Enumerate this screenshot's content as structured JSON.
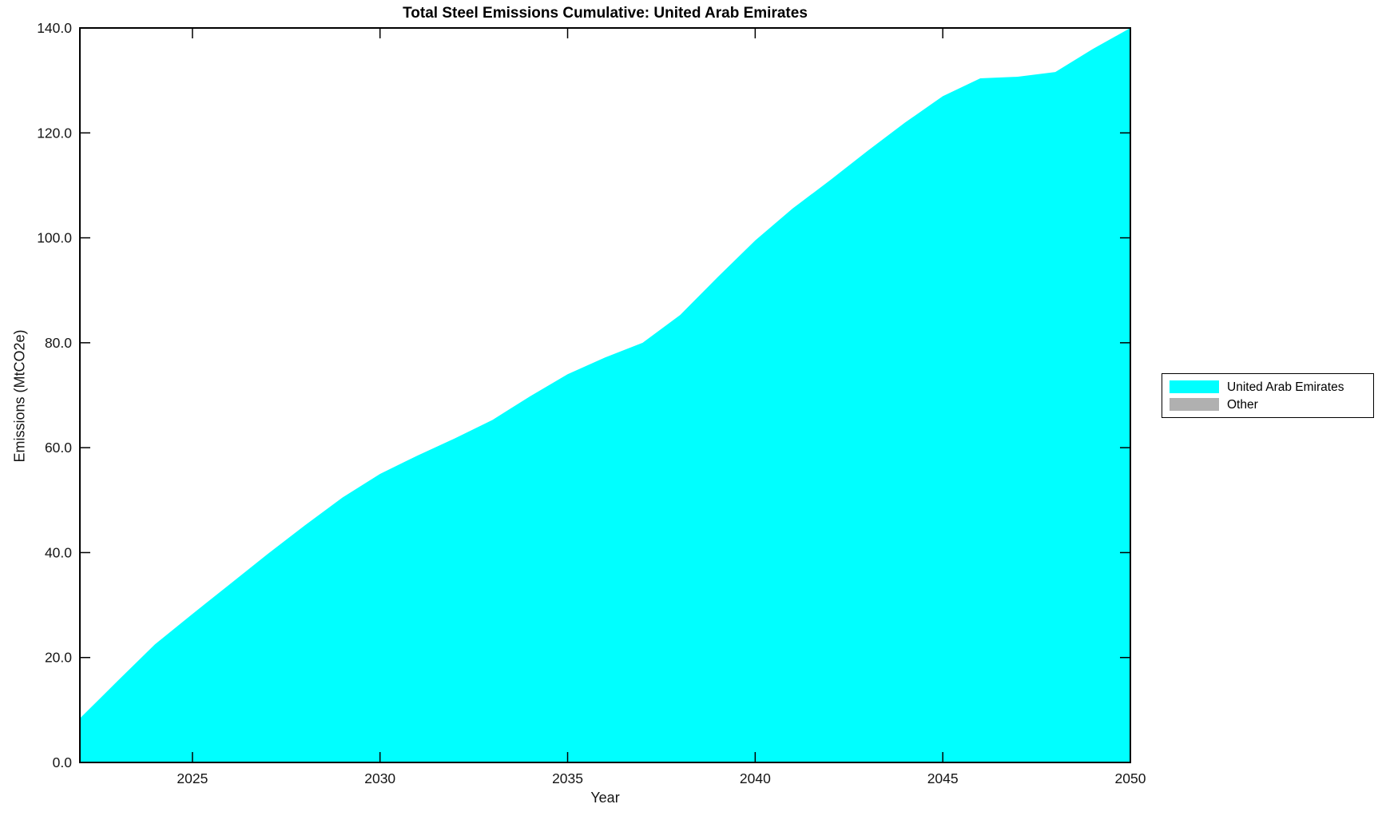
{
  "title": "Total Steel Emissions Cumulative: United Arab Emirates",
  "chart_data": {
    "type": "area",
    "stacked": true,
    "title": "Total Steel Emissions Cumulative: United Arab Emirates",
    "xlabel": "Year",
    "ylabel": "Emissions (MtCO2e)",
    "xlim": [
      2022,
      2050
    ],
    "ylim": [
      0,
      140
    ],
    "grid": false,
    "legend_position": "outside-right",
    "x": [
      2022,
      2023,
      2024,
      2025,
      2026,
      2027,
      2028,
      2029,
      2030,
      2031,
      2032,
      2033,
      2034,
      2035,
      2036,
      2037,
      2038,
      2039,
      2040,
      2041,
      2042,
      2043,
      2044,
      2045,
      2046,
      2047,
      2048,
      2049,
      2050
    ],
    "series": [
      {
        "name": "United Arab Emirates",
        "color": "#00ffff",
        "values": [
          8.4,
          15.5,
          22.5,
          28.3,
          34.0,
          39.7,
          45.2,
          50.5,
          55.0,
          58.5,
          61.8,
          65.3,
          69.8,
          74.0,
          77.2,
          80.0,
          85.3,
          92.5,
          99.5,
          105.6,
          111.0,
          116.6,
          122.0,
          127.0,
          130.4,
          130.7,
          131.6,
          136.0,
          140.0
        ]
      },
      {
        "name": "Other",
        "color": "#b0b0b0",
        "values": [
          0,
          0,
          0,
          0,
          0,
          0,
          0,
          0,
          0,
          0,
          0,
          0,
          0,
          0,
          0,
          0,
          0,
          0,
          0,
          0,
          0,
          0,
          0,
          0,
          0,
          0,
          0,
          0,
          0
        ]
      }
    ],
    "xticks": {
      "values": [
        2025,
        2030,
        2035,
        2040,
        2045,
        2050
      ],
      "labels": [
        "2025",
        "2030",
        "2035",
        "2040",
        "2045",
        "2050"
      ]
    },
    "yticks": {
      "values": [
        0,
        20,
        40,
        60,
        80,
        100,
        120,
        140
      ],
      "labels": [
        "0.0",
        "20.0",
        "40.0",
        "60.0",
        "80.0",
        "100.0",
        "120.0",
        "140.0"
      ]
    }
  }
}
